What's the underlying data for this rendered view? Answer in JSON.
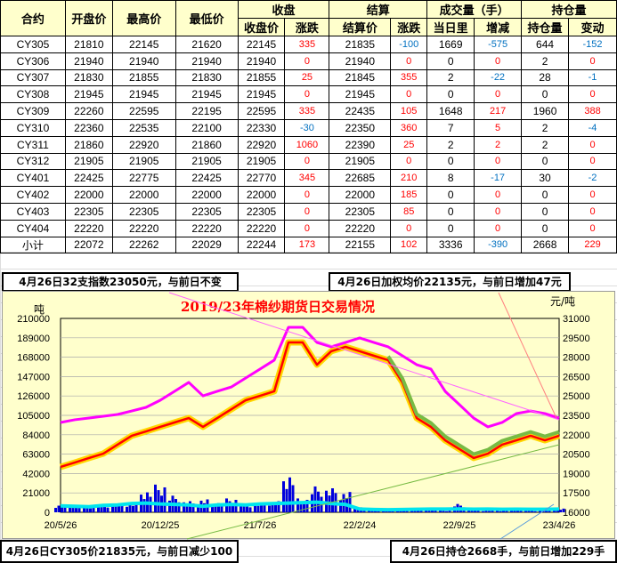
{
  "table": {
    "group_headers": [
      "收盘",
      "结算",
      "成交量（手）",
      "持仓量"
    ],
    "headers": [
      "合约",
      "开盘价",
      "最高价",
      "最低价",
      "收盘价",
      "涨跌",
      "结算价",
      "涨跌",
      "当日里",
      "增减",
      "持仓量",
      "变动"
    ],
    "rows": [
      [
        "CY305",
        "21810",
        "22145",
        "21620",
        "22145",
        "335",
        "21835",
        "-100",
        "1669",
        "-575",
        "644",
        "-152"
      ],
      [
        "CY306",
        "21940",
        "21940",
        "21940",
        "21940",
        "0",
        "21940",
        "0",
        "0",
        "0",
        "2",
        "0"
      ],
      [
        "CY307",
        "21830",
        "21855",
        "21830",
        "21855",
        "25",
        "21845",
        "355",
        "2",
        "-22",
        "28",
        "-1"
      ],
      [
        "CY308",
        "21945",
        "21945",
        "21945",
        "21945",
        "0",
        "21945",
        "0",
        "0",
        "0",
        "0",
        "0"
      ],
      [
        "CY309",
        "22260",
        "22595",
        "22195",
        "22595",
        "335",
        "22435",
        "105",
        "1648",
        "217",
        "1960",
        "388"
      ],
      [
        "CY310",
        "22360",
        "22535",
        "22100",
        "22330",
        "-30",
        "22350",
        "360",
        "7",
        "5",
        "2",
        "-4"
      ],
      [
        "CY311",
        "21860",
        "22920",
        "21860",
        "22920",
        "1060",
        "22390",
        "25",
        "2",
        "2",
        "2",
        "0"
      ],
      [
        "CY312",
        "21905",
        "21905",
        "21905",
        "21905",
        "0",
        "21905",
        "0",
        "0",
        "0",
        "0",
        "0"
      ],
      [
        "CY401",
        "22425",
        "22775",
        "22425",
        "22770",
        "345",
        "22685",
        "210",
        "8",
        "-17",
        "30",
        "-2"
      ],
      [
        "CY402",
        "22000",
        "22000",
        "22000",
        "22000",
        "0",
        "22000",
        "185",
        "0",
        "0",
        "0",
        "0"
      ],
      [
        "CY403",
        "22305",
        "22305",
        "22305",
        "22305",
        "0",
        "22305",
        "85",
        "0",
        "0",
        "0",
        "0"
      ],
      [
        "CY404",
        "22220",
        "22220",
        "22220",
        "22220",
        "0",
        "22220",
        "0",
        "0",
        "0",
        "0",
        "0"
      ],
      [
        "小计",
        "22072",
        "22262",
        "22029",
        "22244",
        "173",
        "22155",
        "102",
        "3336",
        "-390",
        "2668",
        "229"
      ]
    ]
  },
  "notes": {
    "index": "4月26日32支指数23050元，与前日不变",
    "weighted": "4月26日加权均价22135元，与前日增加47元",
    "cy305": "4月26日CY305价21835元，与前日减少100元",
    "oi": "4月26日持仓2668手，与前日增加229手"
  },
  "chart_data": {
    "type": "line",
    "title": "2019/23年棉纱期货日交易情况",
    "ylabel_left": "吨",
    "ylabel_right": "元/吨",
    "ylim_left": [
      0,
      210000
    ],
    "ylim_right": [
      16000,
      31000
    ],
    "yticks_left": [
      "210000",
      "189000",
      "168000",
      "147000",
      "126000",
      "105000",
      "84000",
      "63000",
      "42000",
      "21000",
      "0"
    ],
    "yticks_right": [
      "31000",
      "29500",
      "28000",
      "26500",
      "25000",
      "23500",
      "22000",
      "20500",
      "19000",
      "17500",
      "16000"
    ],
    "xticks": [
      "20/5/26",
      "20/12/25",
      "21/7/26",
      "22/2/24",
      "22/9/25",
      "23/4/26"
    ],
    "grid": true,
    "colors": {
      "index": "#ff00ff",
      "price": "#ff0000",
      "price_fill": "#ffd700",
      "weighted": "#77bb44",
      "volume": "#0000dd",
      "open_interest": "#00e5ee"
    },
    "series": [
      {
        "key": "index",
        "axis": "right",
        "values": [
          22950,
          23160,
          23290,
          23430,
          23570,
          23840,
          24120,
          24670,
          25360,
          26050,
          25010,
          25360,
          25700,
          26390,
          27080,
          27770,
          30310,
          30310,
          29140,
          28800,
          29140,
          29490,
          29140,
          28800,
          28110,
          27420,
          27080,
          25360,
          24330,
          23290,
          22610,
          22950,
          23640,
          23840,
          23640,
          23290
        ]
      },
      {
        "key": "price",
        "axis": "right",
        "values": [
          19510,
          19850,
          20200,
          20540,
          21230,
          21920,
          22260,
          22610,
          22950,
          23290,
          22610,
          23290,
          23980,
          24670,
          25010,
          25360,
          29140,
          29140,
          27420,
          28460,
          28800,
          28460,
          28110,
          27770,
          26050,
          23290,
          22610,
          21570,
          20890,
          20200,
          20540,
          21230,
          21570,
          21920,
          21570,
          21920
        ]
      },
      {
        "key": "volume",
        "axis": "left",
        "values": [
          8000,
          9000,
          7000,
          8500,
          9500,
          10000,
          24000,
          30000,
          18000,
          12000,
          14000,
          11000,
          15000,
          9000,
          10000,
          12000,
          42000,
          15000,
          28000,
          26000,
          22000,
          6000,
          2500,
          2000,
          2000,
          2500,
          3000,
          2000,
          9000,
          2500,
          2000,
          2000,
          2500,
          2000,
          3000,
          4000
        ]
      },
      {
        "key": "open_interest",
        "axis": "left",
        "values": [
          7000,
          6500,
          6000,
          7500,
          8000,
          9500,
          10000,
          9000,
          8500,
          8000,
          6500,
          8000,
          8500,
          8000,
          9000,
          9500,
          10000,
          10500,
          11000,
          9500,
          8500,
          3500,
          3000,
          2800,
          3000,
          3200,
          3500,
          3500,
          3600,
          3400,
          3500,
          3300,
          3400,
          3200,
          3300,
          3500
        ]
      }
    ]
  }
}
